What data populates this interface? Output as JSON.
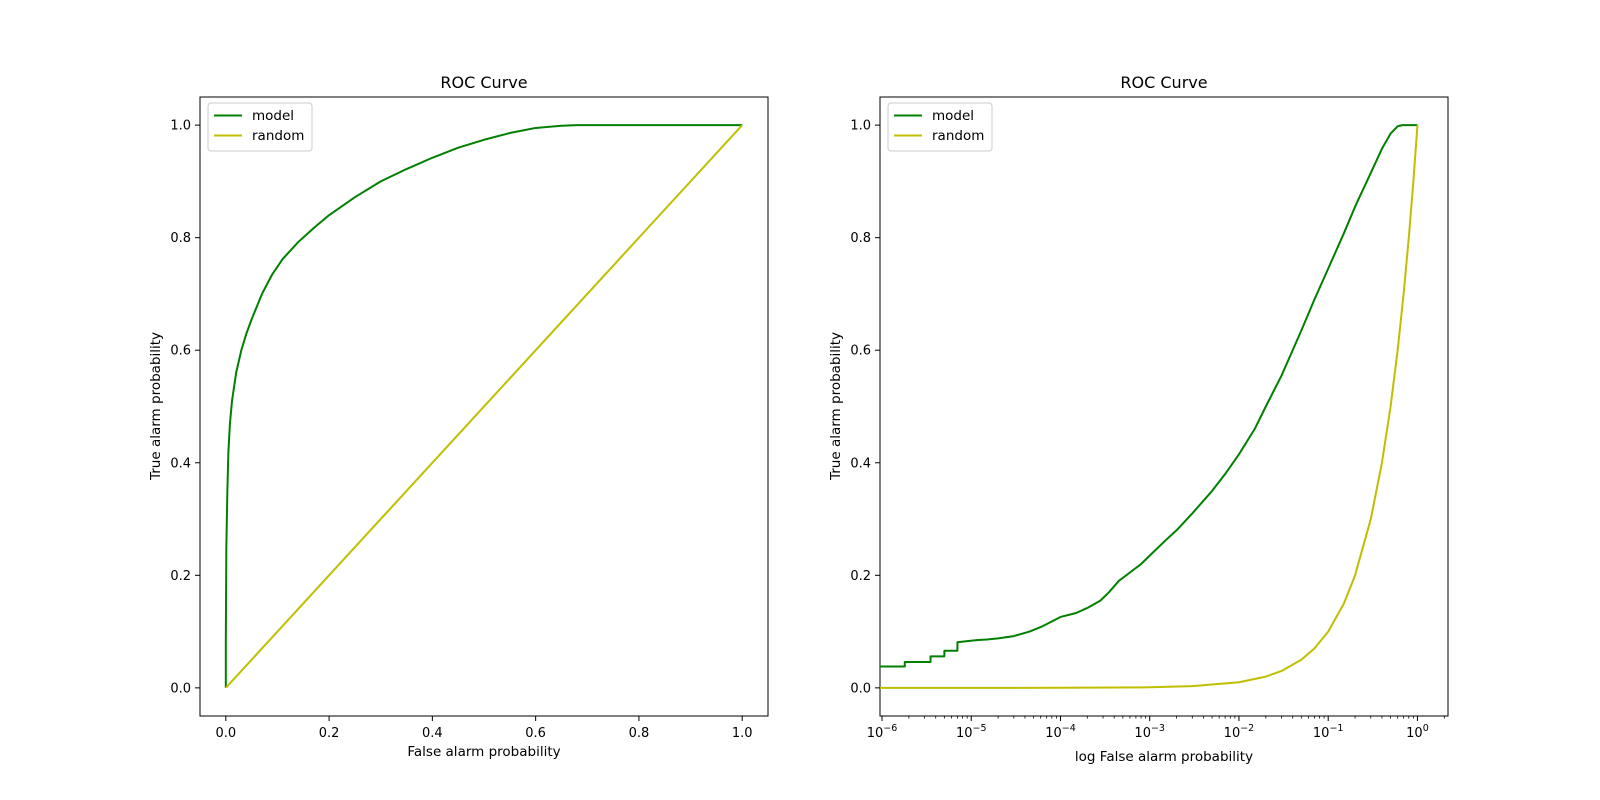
{
  "chart_data": [
    {
      "type": "line",
      "title": "ROC Curve",
      "xlabel": "False alarm probability",
      "ylabel": "True alarm probability",
      "xscale": "linear",
      "xlim": [
        -0.05,
        1.05
      ],
      "ylim": [
        -0.05,
        1.05
      ],
      "x_ticks": [
        0.0,
        0.2,
        0.4,
        0.6,
        0.8,
        1.0
      ],
      "x_tick_labels": [
        "0.0",
        "0.2",
        "0.4",
        "0.6",
        "0.8",
        "1.0"
      ],
      "y_ticks": [
        0.0,
        0.2,
        0.4,
        0.6,
        0.8,
        1.0
      ],
      "y_tick_labels": [
        "0.0",
        "0.2",
        "0.4",
        "0.6",
        "0.8",
        "1.0"
      ],
      "grid": false,
      "legend_position": "upper-left",
      "series": [
        {
          "name": "model",
          "color": "#008000",
          "x": [
            0,
            0.0,
            0.001,
            0.003,
            0.005,
            0.008,
            0.012,
            0.02,
            0.03,
            0.04,
            0.05,
            0.07,
            0.09,
            0.11,
            0.14,
            0.17,
            0.2,
            0.25,
            0.3,
            0.35,
            0.4,
            0.45,
            0.5,
            0.55,
            0.6,
            0.65,
            0.68,
            0.75,
            0.85,
            1.0
          ],
          "y": [
            0,
            0.08,
            0.25,
            0.35,
            0.42,
            0.47,
            0.51,
            0.56,
            0.6,
            0.63,
            0.655,
            0.7,
            0.735,
            0.762,
            0.792,
            0.817,
            0.84,
            0.872,
            0.9,
            0.922,
            0.942,
            0.96,
            0.974,
            0.986,
            0.995,
            0.999,
            1.0,
            1.0,
            1.0,
            1.0
          ]
        },
        {
          "name": "random",
          "color": "#bfbf00",
          "x": [
            0,
            1
          ],
          "y": [
            0,
            1
          ]
        }
      ]
    },
    {
      "type": "line",
      "title": "ROC Curve",
      "xlabel": "log False alarm probability",
      "ylabel": "True alarm probability",
      "xscale": "log",
      "xlim": [
        9.5e-07,
        2.2
      ],
      "ylim": [
        -0.05,
        1.05
      ],
      "x_ticks": [
        1e-06,
        1e-05,
        0.0001,
        0.001,
        0.01,
        0.1,
        1
      ],
      "x_tick_labels": [
        [
          "10",
          "−6"
        ],
        [
          "10",
          "−5"
        ],
        [
          "10",
          "−4"
        ],
        [
          "10",
          "−3"
        ],
        [
          "10",
          "−2"
        ],
        [
          "10",
          "−1"
        ],
        [
          "10",
          "0"
        ]
      ],
      "y_ticks": [
        0.0,
        0.2,
        0.4,
        0.6,
        0.8,
        1.0
      ],
      "y_tick_labels": [
        "0.0",
        "0.2",
        "0.4",
        "0.6",
        "0.8",
        "1.0"
      ],
      "grid": false,
      "legend_position": "upper-left",
      "series": [
        {
          "name": "model",
          "color": "#008000",
          "x": [
            9.5e-07,
            1.8e-06,
            1.8e-06,
            3.5e-06,
            3.5e-06,
            5e-06,
            5e-06,
            7e-06,
            7e-06,
            9e-06,
            1.2e-05,
            1.5e-05,
            2e-05,
            3e-05,
            4.5e-05,
            6e-05,
            8e-05,
            0.0001,
            0.00015,
            0.0002,
            0.00028,
            0.00035,
            0.00045,
            0.0006,
            0.0008,
            0.001,
            0.0015,
            0.002,
            0.003,
            0.005,
            0.007,
            0.01,
            0.015,
            0.02,
            0.03,
            0.05,
            0.07,
            0.1,
            0.15,
            0.2,
            0.3,
            0.4,
            0.5,
            0.6,
            0.68,
            0.8,
            1.0
          ],
          "y": [
            0.038,
            0.038,
            0.046,
            0.046,
            0.056,
            0.056,
            0.066,
            0.066,
            0.081,
            0.083,
            0.085,
            0.086,
            0.088,
            0.092,
            0.1,
            0.108,
            0.118,
            0.126,
            0.133,
            0.142,
            0.155,
            0.17,
            0.19,
            0.205,
            0.22,
            0.235,
            0.262,
            0.28,
            0.31,
            0.35,
            0.38,
            0.415,
            0.46,
            0.5,
            0.555,
            0.635,
            0.69,
            0.745,
            0.808,
            0.855,
            0.915,
            0.958,
            0.985,
            0.998,
            1.0,
            1.0,
            1.0
          ]
        },
        {
          "name": "random",
          "color": "#bfbf00",
          "x": [
            9.5e-07,
            1e-05,
            0.0001,
            0.001,
            0.003,
            0.01,
            0.02,
            0.03,
            0.05,
            0.07,
            0.1,
            0.15,
            0.2,
            0.3,
            0.4,
            0.5,
            0.6,
            0.7,
            0.8,
            0.9,
            1.0
          ],
          "y": [
            0.0,
            0.0,
            0.0001,
            0.001,
            0.003,
            0.01,
            0.02,
            0.03,
            0.05,
            0.07,
            0.1,
            0.15,
            0.2,
            0.3,
            0.4,
            0.5,
            0.6,
            0.7,
            0.8,
            0.9,
            1.0
          ]
        }
      ]
    }
  ]
}
